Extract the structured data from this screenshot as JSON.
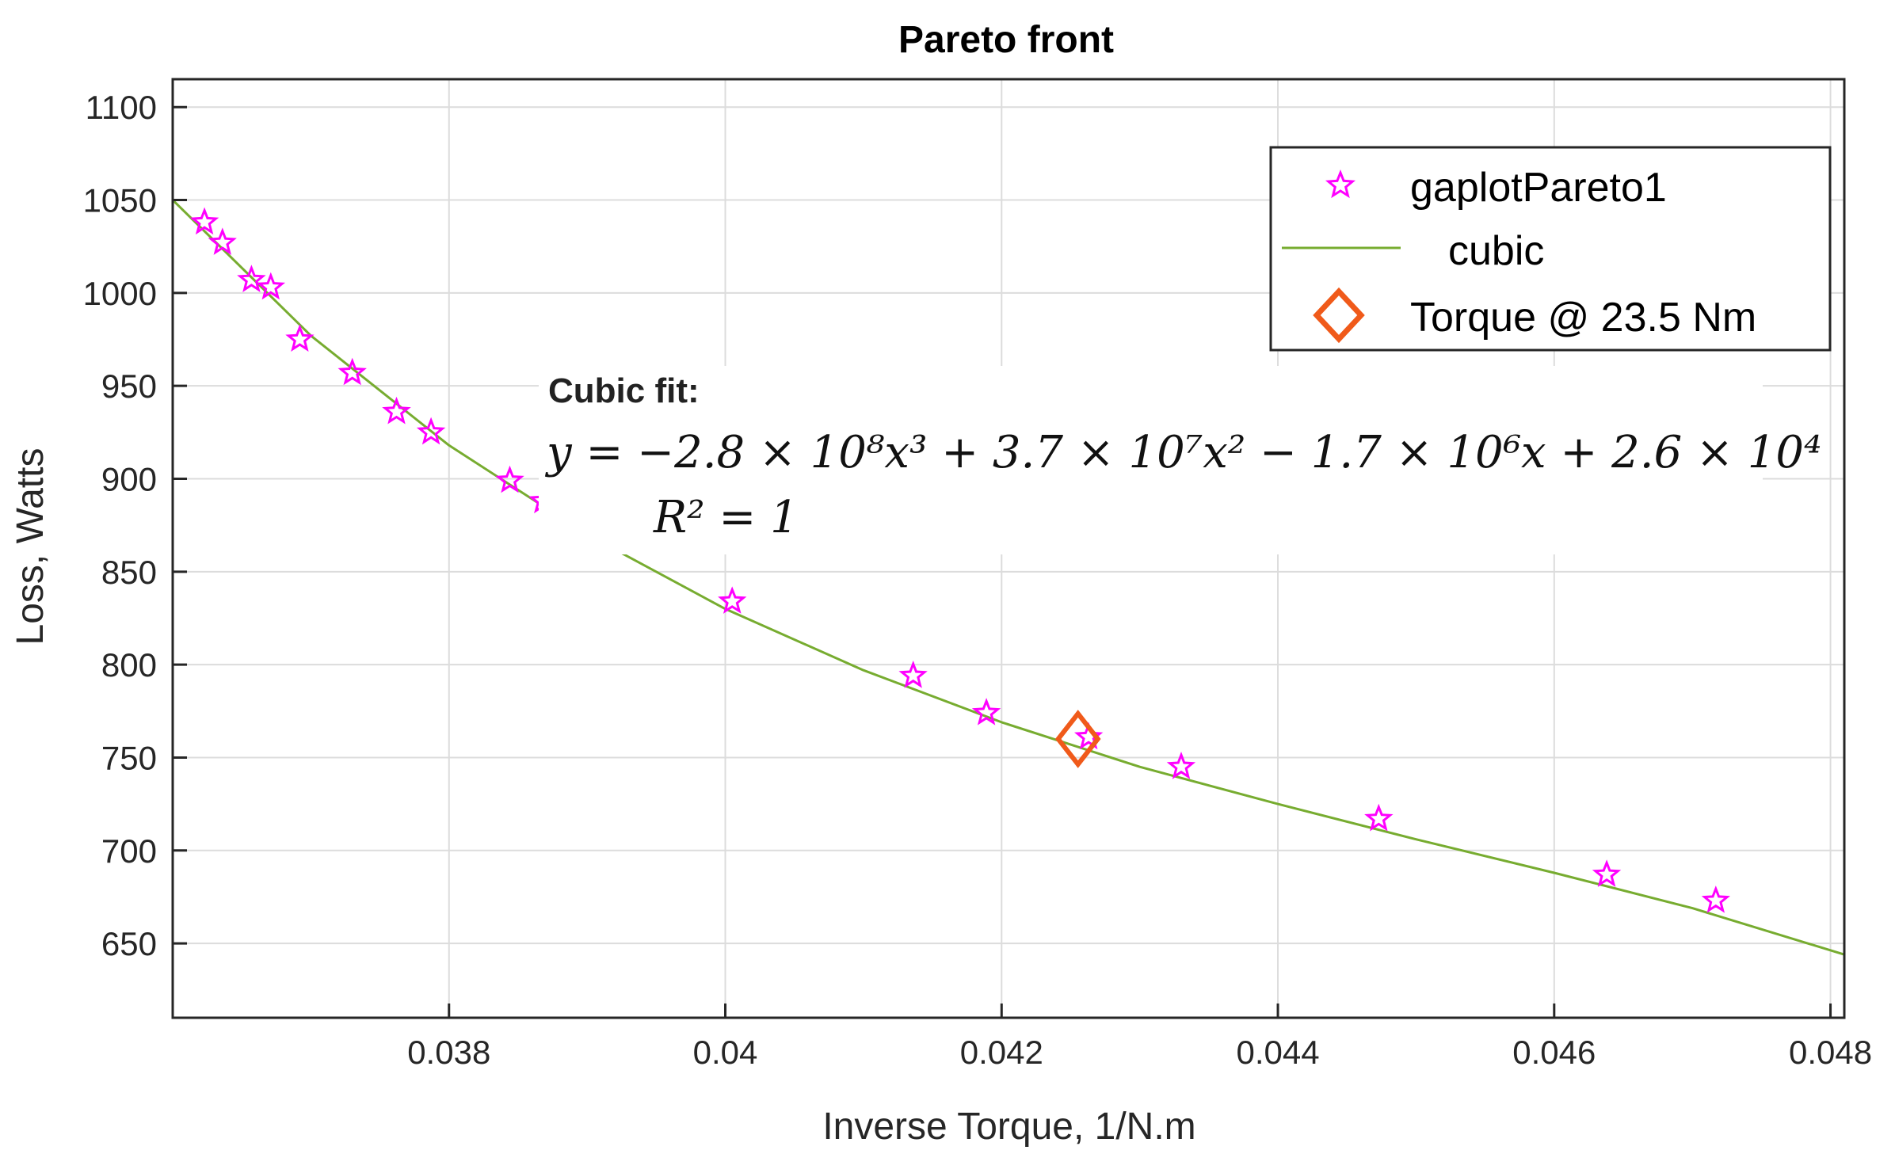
{
  "chart_data": {
    "type": "scatter",
    "title": "Pareto front",
    "xlabel": "Inverse Torque, 1/N.m",
    "ylabel": "Loss, Watts",
    "xlim": [
      0.036,
      0.0481
    ],
    "ylim": [
      610,
      1115
    ],
    "x_ticks": [
      0.038,
      0.04,
      0.042,
      0.044,
      0.046,
      0.048
    ],
    "x_tick_labels": [
      "0.038",
      "0.04",
      "0.042",
      "0.044",
      "0.046",
      "0.048"
    ],
    "y_ticks": [
      650,
      700,
      750,
      800,
      850,
      900,
      950,
      1000,
      1050,
      1100
    ],
    "y_tick_labels": [
      "650",
      "700",
      "750",
      "800",
      "850",
      "900",
      "950",
      "1000",
      "1050",
      "1100"
    ],
    "grid": true,
    "legend_position": "top-right",
    "series": [
      {
        "name": "gaplotPareto1",
        "kind": "scatter",
        "marker": "star",
        "color": "#ff00ff",
        "points": [
          [
            0.03623,
            1038
          ],
          [
            0.03636,
            1027
          ],
          [
            0.03657,
            1007
          ],
          [
            0.03671,
            1003
          ],
          [
            0.03692,
            975
          ],
          [
            0.0373,
            957
          ],
          [
            0.03762,
            936
          ],
          [
            0.03787,
            925
          ],
          [
            0.03844,
            899
          ],
          [
            0.03868,
            888
          ],
          [
            0.04005,
            834
          ],
          [
            0.04136,
            794
          ],
          [
            0.04189,
            774
          ],
          [
            0.04263,
            761
          ],
          [
            0.0433,
            745
          ],
          [
            0.04473,
            717
          ],
          [
            0.04638,
            687
          ],
          [
            0.04717,
            673
          ]
        ]
      },
      {
        "name": "cubic",
        "kind": "line",
        "color": "#77ac30",
        "coefficients": [
          -280000000,
          37000000,
          -1700000,
          26000
        ],
        "points": [
          [
            0.036,
            1050
          ],
          [
            0.037,
            977
          ],
          [
            0.038,
            918
          ],
          [
            0.039,
            870
          ],
          [
            0.04,
            830
          ],
          [
            0.041,
            797
          ],
          [
            0.042,
            769
          ],
          [
            0.043,
            745
          ],
          [
            0.044,
            725
          ],
          [
            0.045,
            706
          ],
          [
            0.046,
            688
          ],
          [
            0.047,
            669
          ],
          [
            0.0481,
            644
          ]
        ]
      },
      {
        "name": "Torque @ 23.5 Nm",
        "kind": "marker",
        "marker": "diamond",
        "color": "#f05a1a",
        "points": [
          [
            0.042553,
            760
          ]
        ]
      }
    ],
    "annotation": {
      "heading": "Cubic fit:",
      "equation": "y = −2.8 × 10⁸x³ + 3.7 × 10⁷x² − 1.7 × 10⁶x + 2.6 × 10⁴",
      "r_squared": "R² = 1"
    }
  }
}
